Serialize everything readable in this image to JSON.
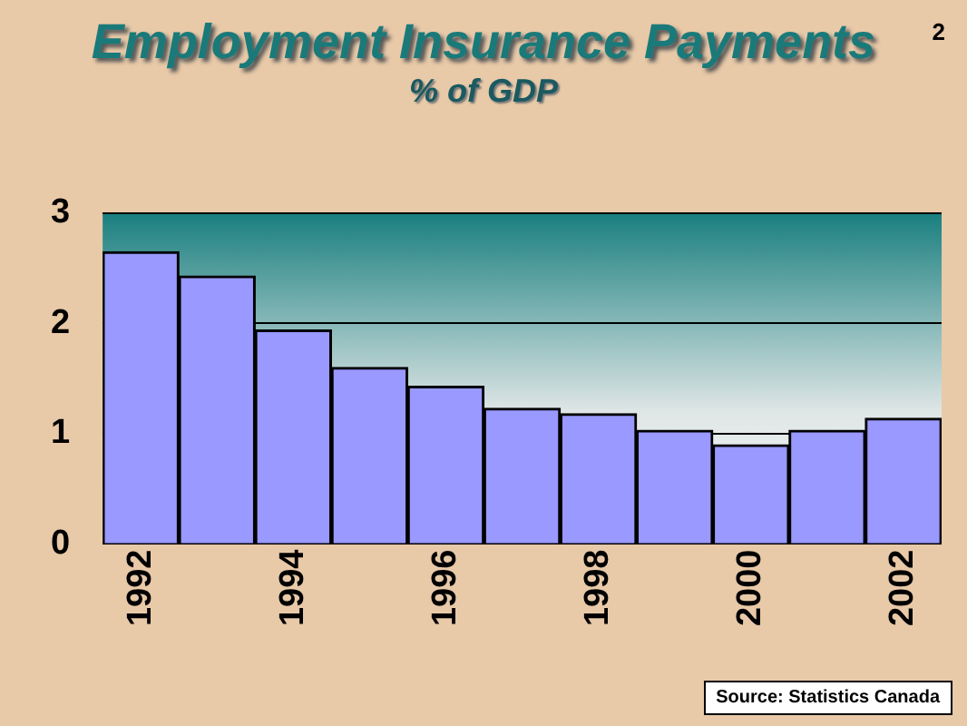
{
  "chart_data": {
    "type": "bar",
    "title": "Employment Insurance Payments",
    "subtitle": "% of GDP",
    "categories": [
      "1992",
      null,
      "1994",
      null,
      "1996",
      null,
      "1998",
      null,
      "2000",
      null,
      "2002"
    ],
    "values": [
      2.65,
      2.43,
      1.94,
      1.6,
      1.43,
      1.23,
      1.18,
      1.03,
      0.9,
      1.03,
      1.14
    ],
    "color": "#9999ff",
    "ylim": [
      0,
      3
    ],
    "yticks": [
      0,
      1,
      2,
      3
    ],
    "grid": "y",
    "annotations": [
      "2",
      "Source: Statistics Canada"
    ]
  }
}
